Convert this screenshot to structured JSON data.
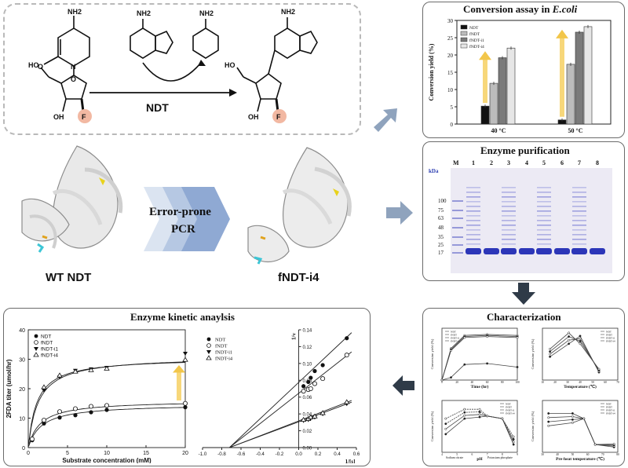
{
  "reaction": {
    "enzyme_label": "NDT",
    "atoms": {
      "nh2": "NH2",
      "n": "N",
      "o": "O",
      "ho": "HO",
      "oh": "OH",
      "f": "F"
    }
  },
  "structures": {
    "wt_label": "WT NDT",
    "mutant_label": "fNDT-i4",
    "process_line1": "Error-prone",
    "process_line2": "PCR"
  },
  "conversion_assay": {
    "title_prefix": "Conversion assay in ",
    "title_organism": "E.coli",
    "chart_data": {
      "type": "bar",
      "categories": [
        "40 °C",
        "50 °C"
      ],
      "series": [
        {
          "name": "NDT",
          "values": [
            5.2,
            1.2
          ],
          "color": "#111111"
        },
        {
          "name": "fNDT",
          "values": [
            11.8,
            17.3
          ],
          "color": "#bcbcbc"
        },
        {
          "name": "fNDT-i1",
          "values": [
            19.2,
            26.6
          ],
          "color": "#7a7a7a"
        },
        {
          "name": "fNDT-i4",
          "values": [
            22.0,
            28.2
          ],
          "color": "#e6e6e6"
        }
      ],
      "ylabel": "Conversion yield (%)",
      "ylim": [
        0,
        30
      ],
      "yticks": [
        0,
        5,
        10,
        15,
        20,
        25,
        30
      ],
      "legend_position": "top-left"
    }
  },
  "purification": {
    "title": "Enzyme purification",
    "marker_label": "M",
    "kda_label": "kDa",
    "lane_labels": [
      "1",
      "2",
      "3",
      "4",
      "5",
      "6",
      "7",
      "8"
    ],
    "mw_labels": [
      "100",
      "75",
      "63",
      "48",
      "35",
      "25",
      "17"
    ]
  },
  "characterization": {
    "title": "Characterization",
    "legend": [
      "NDT",
      "fNDT",
      "fNDT-i1",
      "fNDT-i4"
    ],
    "plots": [
      {
        "xlabel": "Time (hr)",
        "ylabel": "Conversion yield (%)",
        "xticks": [
          "0",
          "20",
          "40",
          "60",
          "80",
          "100"
        ]
      },
      {
        "xlabel": "Temperature (℃)",
        "ylabel": "Conversion yield (%)",
        "xticks": [
          "10",
          "20",
          "30",
          "40",
          "50",
          "60",
          "70"
        ]
      },
      {
        "xlabel": "pH",
        "ylabel": "Conversion yield (%)",
        "xlabel_left": "Sodium citrate",
        "xlabel_right": "Potassium phosphate",
        "xticks": [
          "4",
          "5",
          "6",
          "7",
          "8",
          "9"
        ]
      },
      {
        "xlabel": "Pre-heat temperature (℃)",
        "ylabel": "Conversion yield (%)",
        "xticks": [
          "30",
          "40",
          "50",
          "60",
          "70",
          "80"
        ]
      }
    ]
  },
  "kinetics": {
    "title": "Enzyme kinetic anaylsis",
    "chart_data": [
      {
        "type": "scatter",
        "title": "",
        "xlabel": "Substrate concentration (mM)",
        "ylabel": "2FDA titer (umol/hr)",
        "xlim": [
          0,
          20
        ],
        "ylim": [
          0,
          40
        ],
        "xticks": [
          0,
          5,
          10,
          15,
          20
        ],
        "yticks": [
          0,
          10,
          20,
          30,
          40
        ],
        "legend": [
          "NDT",
          "fNDT",
          "fNDT-i1",
          "fNDT-i4"
        ],
        "series": [
          {
            "name": "NDT",
            "x": [
              0.5,
              2,
              4,
              6,
              8,
              10,
              20
            ],
            "y": [
              2.5,
              8.2,
              10.2,
              11.0,
              12.0,
              12.8,
              13.7
            ]
          },
          {
            "name": "fNDT",
            "x": [
              0.5,
              2,
              4,
              6,
              8,
              10,
              20
            ],
            "y": [
              2.9,
              9.3,
              12.2,
              13.2,
              14.0,
              14.3,
              15.0
            ]
          },
          {
            "name": "fNDT-i1",
            "x": [
              2,
              4,
              6,
              8,
              10,
              20
            ],
            "y": [
              19.5,
              24.0,
              26.2,
              26.7,
              27.2,
              32.0
            ]
          },
          {
            "name": "fNDT-i4",
            "x": [
              2,
              4,
              6,
              8,
              10,
              20
            ],
            "y": [
              20.5,
              24.5,
              25.8,
              26.3,
              26.8,
              29.8
            ]
          }
        ]
      },
      {
        "type": "scatter",
        "title": "",
        "xlabel": "1/[s]",
        "ylabel": "1/v",
        "xlim": [
          -1.0,
          0.6
        ],
        "ylim": [
          0,
          0.14
        ],
        "xticks": [
          "-1.0",
          "-0.8",
          "-0.6",
          "-0.4",
          "-0.2",
          "0.0",
          "0.2",
          "0.4",
          "0.6"
        ],
        "yticks": [
          "0.00",
          "0.02",
          "0.04",
          "0.06",
          "0.08",
          "0.10",
          "0.12",
          "0.14"
        ],
        "legend": [
          "NDT",
          "fNDT",
          "fNDT-i1",
          "fNDT-i4"
        ],
        "series": [
          {
            "name": "NDT",
            "x": [
              0.05,
              0.1,
              0.125,
              0.167,
              0.25,
              0.5
            ],
            "y": [
              0.073,
              0.078,
              0.083,
              0.091,
              0.098,
              0.13
            ]
          },
          {
            "name": "fNDT",
            "x": [
              0.05,
              0.1,
              0.125,
              0.167,
              0.25,
              0.5
            ],
            "y": [
              0.067,
              0.069,
              0.07,
              0.076,
              0.082,
              0.11
            ]
          },
          {
            "name": "fNDT-i1",
            "x": [
              0.05,
              0.1,
              0.125,
              0.167,
              0.25,
              0.5
            ],
            "y": [
              0.032,
              0.033,
              0.035,
              0.036,
              0.04,
              0.052
            ]
          },
          {
            "name": "fNDT-i4",
            "x": [
              0.05,
              0.1,
              0.125,
              0.167,
              0.25,
              0.5
            ],
            "y": [
              0.033,
              0.034,
              0.036,
              0.037,
              0.041,
              0.054
            ]
          }
        ]
      }
    ]
  }
}
